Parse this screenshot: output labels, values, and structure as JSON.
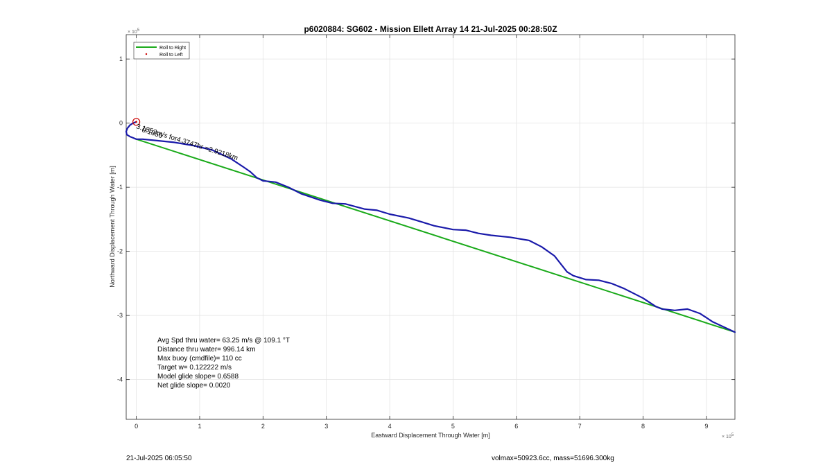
{
  "chart_data": {
    "type": "line",
    "title": "p6020884: SG602 - Mission Ellett Array 14 21-Jul-2025 00:28:50Z",
    "xlabel": "Eastward Displacement Through Water [m]",
    "ylabel": "Northward Displacement Through Water [m]",
    "xlim": [
      -0.16,
      9.45
    ],
    "ylim": [
      -4.62,
      1.38
    ],
    "x_exponent_label": "× 10",
    "y_exponent_label": "× 10",
    "exponent_power": "5",
    "x_scale_factor": 100000,
    "y_scale_factor": 100000,
    "x_ticks": [
      "0",
      "1",
      "2",
      "3",
      "4",
      "5",
      "6",
      "7",
      "8",
      "9"
    ],
    "y_ticks": [
      "1",
      "0",
      "-1",
      "-2",
      "-3",
      "-4"
    ],
    "grid": true,
    "legend_position": "top-left",
    "legend": [
      {
        "label": "Roll to Right",
        "color": "#1aaa1a",
        "marker": "line"
      },
      {
        "label": "Roll to Left",
        "color": "#cc0000",
        "marker": "dot"
      }
    ],
    "series": [
      {
        "color": "#1aaa1a",
        "x": [
          0.0,
          9.45
        ],
        "y": [
          -0.25,
          -3.26
        ]
      },
      {
        "color": "#1a1aaa",
        "x": [
          0.0,
          -0.05,
          -0.1,
          -0.14,
          -0.16,
          -0.15,
          -0.1,
          -0.05,
          0.0,
          0.1,
          0.3,
          0.6,
          0.9,
          1.2,
          1.5,
          1.7,
          1.8,
          1.9,
          2.0,
          2.2,
          2.4,
          2.6,
          2.9,
          3.1,
          3.3,
          3.6,
          3.8,
          4.0,
          4.3,
          4.5,
          4.7,
          5.0,
          5.2,
          5.4,
          5.6,
          5.9,
          6.2,
          6.4,
          6.6,
          6.8,
          6.9,
          7.1,
          7.3,
          7.5,
          7.7,
          8.0,
          8.2,
          8.3,
          8.5,
          8.7,
          8.9,
          9.1,
          9.45
        ],
        "y": [
          0.02,
          0.0,
          -0.03,
          -0.08,
          -0.13,
          -0.18,
          -0.21,
          -0.23,
          -0.25,
          -0.25,
          -0.27,
          -0.3,
          -0.35,
          -0.42,
          -0.56,
          -0.69,
          -0.76,
          -0.85,
          -0.9,
          -0.92,
          -1.0,
          -1.1,
          -1.2,
          -1.25,
          -1.26,
          -1.34,
          -1.36,
          -1.42,
          -1.48,
          -1.54,
          -1.6,
          -1.66,
          -1.67,
          -1.72,
          -1.75,
          -1.78,
          -1.83,
          -1.93,
          -2.07,
          -2.32,
          -2.38,
          -2.44,
          -2.45,
          -2.5,
          -2.58,
          -2.73,
          -2.86,
          -2.9,
          -2.92,
          -2.9,
          -2.97,
          -3.1,
          -3.26
        ]
      }
    ],
    "start_marker": {
      "x": 0.0,
      "y": 0.02,
      "color": "#cc0000"
    },
    "trajectory_annotation": "3.1852m/s for4.3747hr =2.9218km",
    "trajectory_annotation_overlap": "0.1056",
    "info_lines": [
      "Avg Spd thru water= 63.25 m/s @ 109.1 °T",
      "Distance thru water= 996.14 km",
      "Max buoy (cmdfile)= 110 cc",
      "Target w= 0.122222 m/s",
      "Model glide slope= 0.6588",
      "Net glide slope= 0.0020"
    ]
  },
  "footer": {
    "timestamp": "21-Jul-2025 06:05:50",
    "volume_mass": "volmax=50923.6cc, mass=51696.300kg"
  }
}
